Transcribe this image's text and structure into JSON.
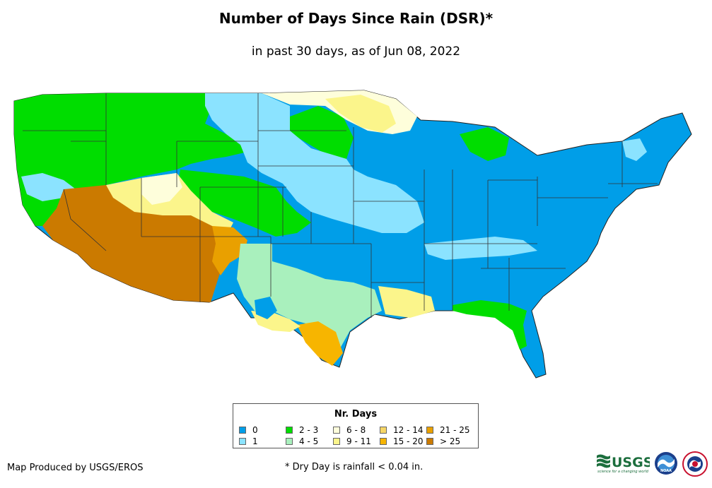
{
  "title": "Number of Days Since Rain (DSR)*",
  "subtitle": "in past 30 days, as of Jun 08, 2022",
  "legend": {
    "title": "Nr. Days",
    "items": [
      {
        "label": "0",
        "color": "#009ee8"
      },
      {
        "label": "1",
        "color": "#8be3ff"
      },
      {
        "label": "2 - 3",
        "color": "#00dd00"
      },
      {
        "label": "4 - 5",
        "color": "#a9f0bd"
      },
      {
        "label": "6 - 8",
        "color": "#fefedb"
      },
      {
        "label": "9 - 11",
        "color": "#fbf58b"
      },
      {
        "label": "12 - 14",
        "color": "#f6d666"
      },
      {
        "label": "15 - 20",
        "color": "#f7b500"
      },
      {
        "label": "21 - 25",
        "color": "#e9a000"
      },
      {
        "label": "> 25",
        "color": "#cb7a00"
      }
    ]
  },
  "footer": {
    "produced_by": "Map Produced by USGS/EROS",
    "footnote": "* Dry Day is rainfall < 0.04 in."
  },
  "logos": {
    "usgs_text": "USGS",
    "usgs_tagline": "science for a changing world",
    "noaa_text": "NOAA"
  }
}
